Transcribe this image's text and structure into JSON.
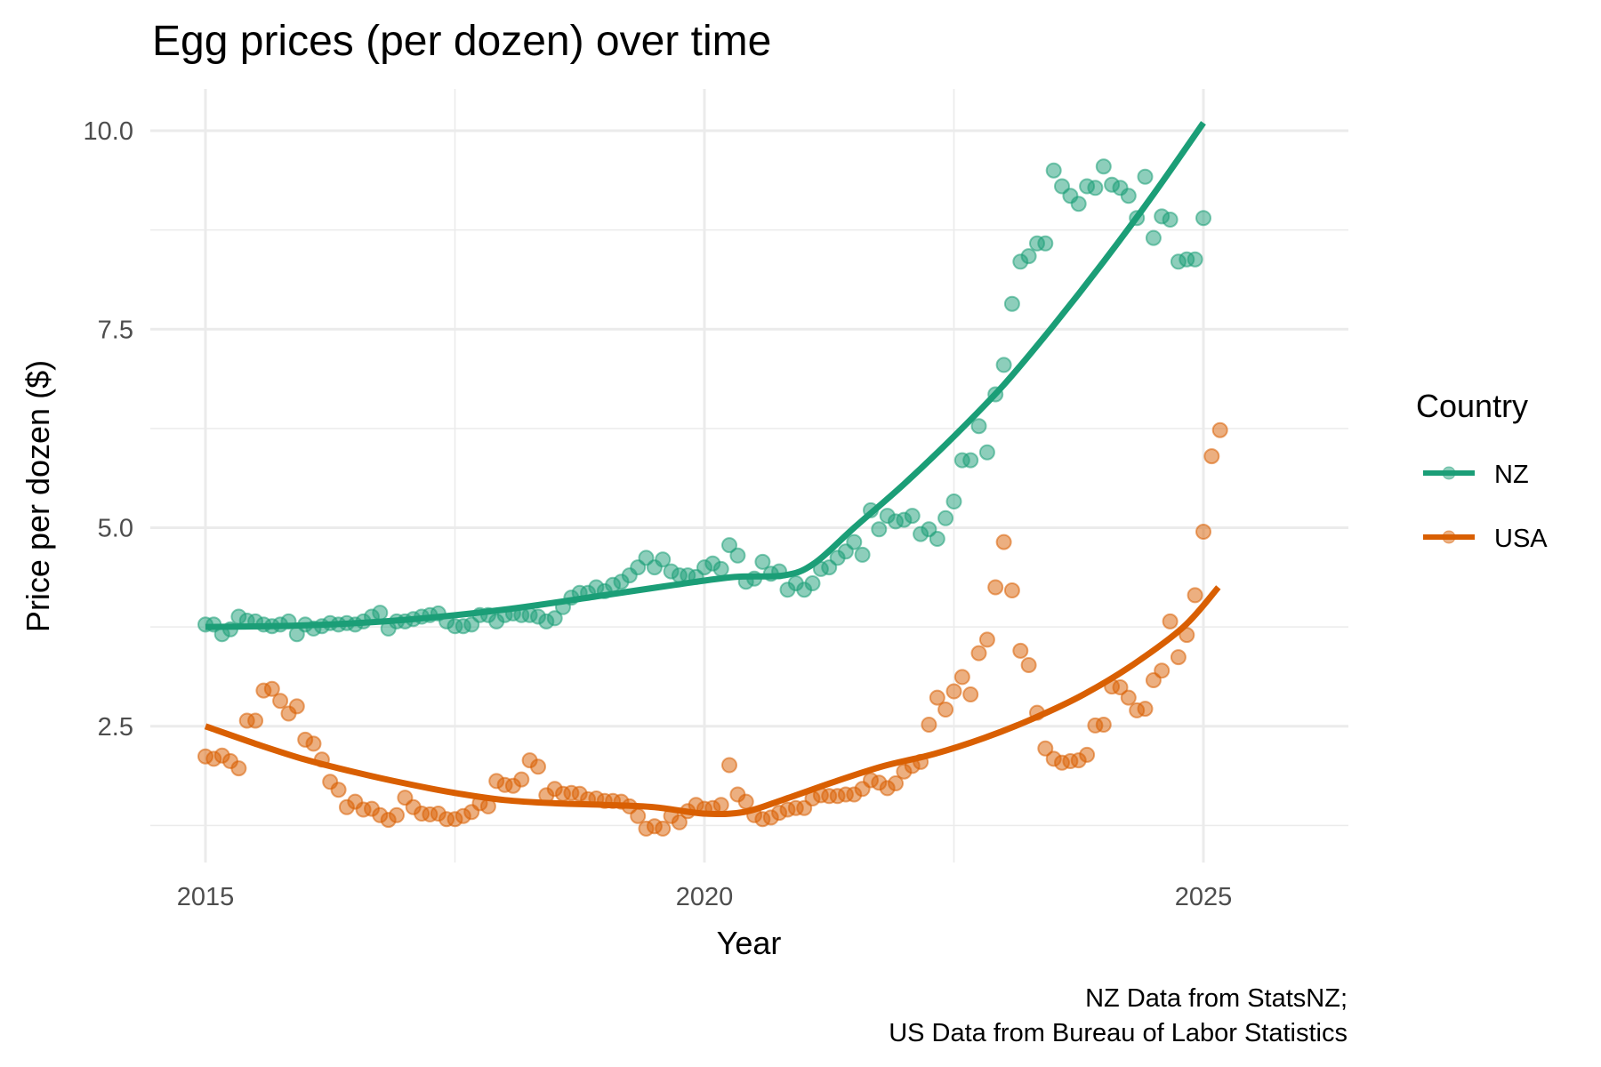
{
  "chart_data": {
    "type": "scatter",
    "title": "Egg prices (per dozen) over time",
    "xlabel": "Year",
    "ylabel": "Price per dozen ($)",
    "caption": [
      "NZ Data from StatsNZ;",
      "US Data from Bureau of Labor Statistics"
    ],
    "xlim": [
      2014.5,
      2027.0
    ],
    "ylim": [
      0.85,
      10.5
    ],
    "x_ticks": [
      2015,
      2020,
      2025
    ],
    "x_tick_labels": [
      "2015",
      "2020",
      "2025"
    ],
    "x_minor_ticks": [
      2017.5,
      2022.5
    ],
    "y_ticks": [
      2.5,
      5.0,
      7.5,
      10.0
    ],
    "y_tick_labels": [
      "2.5",
      "5.0",
      "7.5",
      "10.0"
    ],
    "y_minor_ticks": [
      1.25,
      3.75,
      6.25,
      8.75
    ],
    "grid": true,
    "legend": {
      "title": "Country",
      "placement": "right",
      "entries": [
        "NZ",
        "USA"
      ]
    },
    "x_start": 2015.0,
    "x_step": 0.08333,
    "series": [
      {
        "name": "NZ",
        "color": "#1B9E77",
        "points_monthly_from_2015_01": [
          3.78,
          3.78,
          3.66,
          3.72,
          3.88,
          3.83,
          3.82,
          3.78,
          3.76,
          3.78,
          3.82,
          3.66,
          3.78,
          3.73,
          3.76,
          3.8,
          3.78,
          3.8,
          3.78,
          3.82,
          3.88,
          3.93,
          3.73,
          3.82,
          3.82,
          3.85,
          3.88,
          3.9,
          3.92,
          3.82,
          3.76,
          3.76,
          3.78,
          3.9,
          3.9,
          3.82,
          3.9,
          3.92,
          3.9,
          3.9,
          3.88,
          3.82,
          3.86,
          4.0,
          4.12,
          4.18,
          4.18,
          4.25,
          4.2,
          4.28,
          4.32,
          4.4,
          4.5,
          4.62,
          4.5,
          4.6,
          4.45,
          4.4,
          4.4,
          4.38,
          4.5,
          4.55,
          4.48,
          4.78,
          4.65,
          4.32,
          4.36,
          4.57,
          4.42,
          4.45,
          4.22,
          4.3,
          4.22,
          4.3,
          4.48,
          4.5,
          4.62,
          4.7,
          4.82,
          4.66,
          5.22,
          4.98,
          5.15,
          5.08,
          5.1,
          5.15,
          4.92,
          4.98,
          4.86,
          5.12,
          5.33,
          5.85,
          5.85,
          6.28,
          5.95,
          6.68,
          7.05,
          7.82,
          8.35,
          8.42,
          8.58,
          8.58,
          9.5,
          9.3,
          9.18,
          9.08,
          9.3,
          9.28,
          9.55,
          9.32,
          9.28,
          9.18,
          8.9,
          9.42,
          8.65,
          8.92,
          8.88,
          8.35,
          8.38,
          8.38,
          8.9
        ],
        "smooth_curve": {
          "x": [
            2015.0,
            2016.0,
            2017.0,
            2018.0,
            2019.0,
            2019.7,
            2020.3,
            2020.8,
            2021.1,
            2021.5,
            2022.0,
            2022.5,
            2023.0,
            2023.5,
            2024.0,
            2024.5,
            2025.0
          ],
          "y": [
            3.75,
            3.77,
            3.84,
            3.97,
            4.15,
            4.28,
            4.38,
            4.4,
            4.55,
            5.0,
            5.55,
            6.15,
            6.8,
            7.55,
            8.35,
            9.2,
            10.1
          ]
        }
      },
      {
        "name": "USA",
        "color": "#D95F02",
        "points_monthly_from_2015_01": [
          2.12,
          2.09,
          2.13,
          2.06,
          1.97,
          2.57,
          2.57,
          2.95,
          2.97,
          2.82,
          2.66,
          2.75,
          2.33,
          2.28,
          2.08,
          1.8,
          1.7,
          1.48,
          1.55,
          1.45,
          1.46,
          1.38,
          1.32,
          1.38,
          1.6,
          1.48,
          1.4,
          1.39,
          1.4,
          1.33,
          1.33,
          1.37,
          1.42,
          1.53,
          1.49,
          1.81,
          1.76,
          1.75,
          1.83,
          2.07,
          1.99,
          1.63,
          1.71,
          1.65,
          1.66,
          1.65,
          1.58,
          1.59,
          1.56,
          1.56,
          1.55,
          1.49,
          1.37,
          1.21,
          1.24,
          1.21,
          1.37,
          1.29,
          1.43,
          1.51,
          1.46,
          1.47,
          1.51,
          2.01,
          1.64,
          1.55,
          1.38,
          1.33,
          1.35,
          1.41,
          1.45,
          1.47,
          1.47,
          1.59,
          1.63,
          1.62,
          1.62,
          1.64,
          1.64,
          1.71,
          1.82,
          1.79,
          1.72,
          1.78,
          1.93,
          2.0,
          2.05,
          2.52,
          2.86,
          2.71,
          2.94,
          3.12,
          2.9,
          3.42,
          3.59,
          4.25,
          4.82,
          4.21,
          3.45,
          3.27,
          2.67,
          2.22,
          2.09,
          2.04,
          2.06,
          2.07,
          2.14,
          2.51,
          2.52,
          3.0,
          2.99,
          2.86,
          2.7,
          2.72,
          3.08,
          3.2,
          3.82,
          3.37,
          3.65,
          4.15,
          4.95,
          5.9,
          6.23
        ],
        "smooth_curve": {
          "x": [
            2015.0,
            2015.5,
            2016.0,
            2016.5,
            2017.0,
            2017.5,
            2018.0,
            2018.5,
            2019.0,
            2019.5,
            2020.0,
            2020.4,
            2020.8,
            2021.3,
            2021.8,
            2022.3,
            2022.8,
            2023.3,
            2023.8,
            2024.3,
            2024.8,
            2025.15
          ],
          "y": [
            2.5,
            2.28,
            2.08,
            1.92,
            1.78,
            1.66,
            1.57,
            1.53,
            1.51,
            1.48,
            1.4,
            1.42,
            1.58,
            1.8,
            2.0,
            2.15,
            2.35,
            2.6,
            2.9,
            3.28,
            3.75,
            4.25
          ]
        }
      }
    ]
  }
}
